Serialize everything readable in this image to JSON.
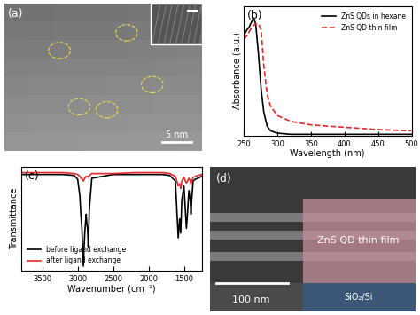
{
  "chart_data": [
    {
      "type": "image",
      "label": "(a)",
      "scale_bar": "5 nm"
    },
    {
      "type": "line",
      "label": "(b)",
      "x_label": "Wavelength (nm)",
      "y_label": "Absorbance (a.u.)",
      "x": [
        250,
        255,
        258,
        262,
        265,
        268,
        272,
        276,
        280,
        285,
        290,
        300,
        320,
        350,
        400,
        450,
        500
      ],
      "series": [
        {
          "name": "ZnS QDs in hexane",
          "color": "#000000",
          "line_style": "solid",
          "values": [
            0.85,
            0.9,
            0.92,
            0.97,
            1.0,
            0.95,
            0.7,
            0.4,
            0.2,
            0.08,
            0.04,
            0.02,
            0.01,
            0.01,
            0.01,
            0.01,
            0.01
          ]
        },
        {
          "name": "ZnS QD thin film",
          "color": "#e8272a",
          "line_style": "dashed",
          "values": [
            0.82,
            0.85,
            0.88,
            0.92,
            0.94,
            0.95,
            0.95,
            0.9,
            0.6,
            0.35,
            0.25,
            0.17,
            0.12,
            0.09,
            0.07,
            0.05,
            0.04
          ]
        }
      ],
      "xlim": [
        250,
        500
      ],
      "xticks": [
        250,
        300,
        350,
        400,
        450,
        500
      ],
      "ylim": [
        0,
        1.1
      ],
      "yticks": [],
      "tick_labels": "x",
      "legend": "upper right"
    },
    {
      "type": "line",
      "label": "(c)",
      "x_label": "Wavenumber (cm⁻¹)",
      "y_label": "Transmittance",
      "x": [
        3800,
        3500,
        3200,
        3050,
        3000,
        2970,
        2955,
        2940,
        2920,
        2900,
        2880,
        2870,
        2860,
        2850,
        2835,
        2800,
        2500,
        2200,
        2000,
        1800,
        1700,
        1620,
        1600,
        1580,
        1560,
        1545,
        1530,
        1500,
        1480,
        1465,
        1450,
        1430,
        1410,
        1400,
        1390,
        1370,
        1340,
        1300,
        1250
      ],
      "series": [
        {
          "name": "before ligand exchange",
          "color": "#000000",
          "line_style": "solid",
          "values": [
            0.97,
            0.97,
            0.97,
            0.96,
            0.92,
            0.75,
            0.55,
            0.4,
            0.0,
            0.35,
            0.55,
            0.45,
            0.4,
            0.2,
            0.6,
            0.93,
            0.97,
            0.97,
            0.97,
            0.97,
            0.96,
            0.9,
            0.6,
            0.3,
            0.5,
            0.35,
            0.7,
            0.85,
            0.6,
            0.4,
            0.55,
            0.8,
            0.7,
            0.55,
            0.7,
            0.9,
            0.92,
            0.93,
            0.95
          ]
        },
        {
          "name": "after ligand exchange",
          "color": "#e8272a",
          "line_style": "solid",
          "values": [
            0.99,
            0.99,
            0.99,
            0.98,
            0.97,
            0.95,
            0.93,
            0.93,
            0.9,
            0.93,
            0.95,
            0.95,
            0.95,
            0.94,
            0.96,
            0.98,
            0.98,
            0.99,
            0.99,
            0.99,
            0.98,
            0.95,
            0.9,
            0.85,
            0.87,
            0.82,
            0.9,
            0.94,
            0.9,
            0.88,
            0.9,
            0.93,
            0.9,
            0.87,
            0.9,
            0.94,
            0.95,
            0.96,
            0.97
          ]
        }
      ],
      "xlim": [
        3800,
        1250
      ],
      "xticks": [
        3500,
        3000,
        2500,
        2000,
        1500
      ],
      "ylim": [
        -0.05,
        1.05
      ],
      "yticks": [],
      "tick_labels": "x",
      "legend": "lower left"
    },
    {
      "type": "image",
      "label": "(d)",
      "scale_bar": "100 nm",
      "annotations": [
        "ZnS QD thin film",
        "SiO₂/Si"
      ]
    }
  ]
}
